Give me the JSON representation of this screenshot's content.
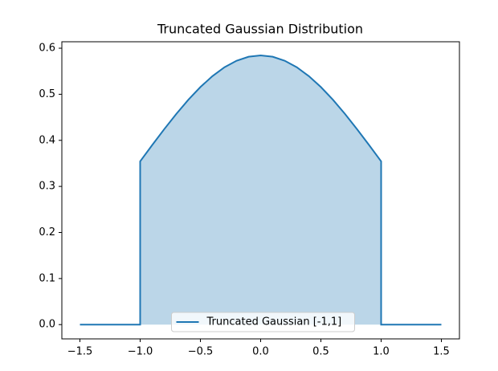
{
  "chart_data": {
    "type": "line",
    "title": "Truncated Gaussian Distribution",
    "x": [
      -1.5,
      -1.4,
      -1.3,
      -1.2,
      -1.1,
      -1.0,
      -1.0,
      -0.9,
      -0.8,
      -0.7,
      -0.6,
      -0.5,
      -0.4,
      -0.3,
      -0.2,
      -0.1,
      0.0,
      0.1,
      0.2,
      0.3,
      0.4,
      0.5,
      0.6,
      0.7,
      0.8,
      0.9,
      1.0,
      1.0,
      1.1,
      1.2,
      1.3,
      1.4,
      1.5
    ],
    "series": [
      {
        "name": "Truncated Gaussian [-1,1]",
        "color": "#1f77b4",
        "fill": true,
        "values": [
          0,
          0,
          0,
          0,
          0,
          0,
          0.3544,
          0.3898,
          0.4243,
          0.4574,
          0.4881,
          0.5157,
          0.5394,
          0.5587,
          0.5728,
          0.5815,
          0.5844,
          0.5815,
          0.5728,
          0.5587,
          0.5394,
          0.5157,
          0.4881,
          0.4574,
          0.4243,
          0.3898,
          0.3544,
          0,
          0,
          0,
          0,
          0,
          0
        ]
      }
    ],
    "xlim": [
      -1.65,
      1.65
    ],
    "xticks": [
      {
        "value": -1.5,
        "label": "−1.5"
      },
      {
        "value": -1.0,
        "label": "−1.0"
      },
      {
        "value": -0.5,
        "label": "−0.5"
      },
      {
        "value": 0,
        "label": "0.0"
      },
      0.5,
      {
        "value": 1.0,
        "label": "1.0"
      },
      1.5
    ],
    "ylim": [
      -0.031,
      0.614
    ],
    "yticks": [
      {
        "value": 0,
        "label": "0.0"
      },
      0.1,
      0.2,
      0.3,
      0.4,
      0.5,
      0.6
    ],
    "legend": "lower center",
    "grid": false
  }
}
